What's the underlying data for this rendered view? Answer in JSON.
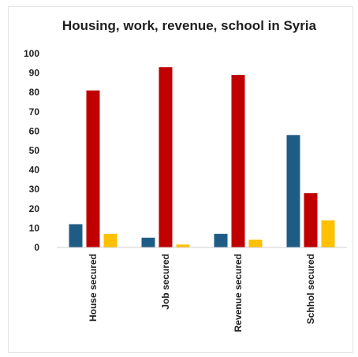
{
  "chart_data": {
    "type": "bar",
    "title": "Housing, work, revenue, school in Syria",
    "xlabel": "",
    "ylabel": "",
    "categories": [
      "House secured",
      "Job secured",
      "Revenue secured",
      "Schhol secured"
    ],
    "series": [
      {
        "values": [
          12,
          5,
          7,
          58
        ],
        "color": "#1f5c85"
      },
      {
        "values": [
          81,
          93,
          89,
          28
        ],
        "color": "#c00000"
      },
      {
        "values": [
          7,
          1.5,
          4,
          14
        ],
        "color": "#ffc000"
      }
    ],
    "ylim": [
      0,
      100
    ],
    "yticks": [
      0,
      10,
      20,
      30,
      40,
      50,
      60,
      70,
      80,
      90,
      100
    ],
    "grid": false,
    "legend": "none"
  }
}
